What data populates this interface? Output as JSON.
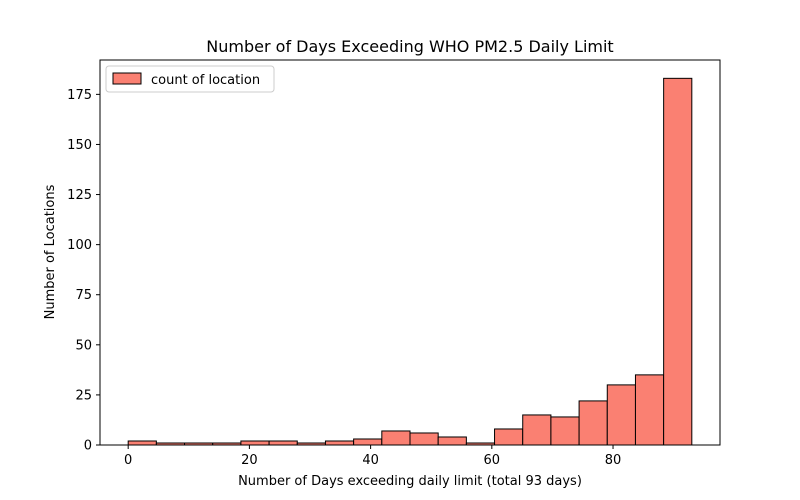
{
  "chart_data": {
    "type": "bar",
    "title": "Number of Days Exceeding WHO PM2.5 Daily Limit",
    "xlabel": "Number of Days exceeding daily limit (total 93 days)",
    "ylabel": "Number of Locations",
    "xlim": [
      -4.65,
      97.65
    ],
    "ylim": [
      0,
      192.15
    ],
    "x_ticks": [
      0,
      20,
      40,
      60,
      80
    ],
    "y_ticks": [
      0,
      25,
      50,
      75,
      100,
      125,
      150,
      175
    ],
    "bins": [
      {
        "start": 0.0,
        "end": 4.65,
        "value": 2
      },
      {
        "start": 4.65,
        "end": 9.3,
        "value": 1
      },
      {
        "start": 9.3,
        "end": 13.95,
        "value": 1
      },
      {
        "start": 13.95,
        "end": 18.6,
        "value": 1
      },
      {
        "start": 18.6,
        "end": 23.25,
        "value": 2
      },
      {
        "start": 23.25,
        "end": 27.9,
        "value": 2
      },
      {
        "start": 27.9,
        "end": 32.55,
        "value": 1
      },
      {
        "start": 32.55,
        "end": 37.2,
        "value": 2
      },
      {
        "start": 37.2,
        "end": 41.85,
        "value": 3
      },
      {
        "start": 41.85,
        "end": 46.5,
        "value": 7
      },
      {
        "start": 46.5,
        "end": 51.15,
        "value": 6
      },
      {
        "start": 51.15,
        "end": 55.8,
        "value": 4
      },
      {
        "start": 55.8,
        "end": 60.45,
        "value": 1
      },
      {
        "start": 60.45,
        "end": 65.1,
        "value": 8
      },
      {
        "start": 65.1,
        "end": 69.75,
        "value": 15
      },
      {
        "start": 69.75,
        "end": 74.4,
        "value": 14
      },
      {
        "start": 74.4,
        "end": 79.05,
        "value": 22
      },
      {
        "start": 79.05,
        "end": 83.7,
        "value": 30
      },
      {
        "start": 83.7,
        "end": 88.35,
        "value": 35
      },
      {
        "start": 88.35,
        "end": 93.0,
        "value": 183
      }
    ],
    "series": [
      {
        "name": "count of location",
        "color": "#fa8072",
        "edge_color": "#000000"
      }
    ],
    "legend": {
      "position": "top-left"
    },
    "grid": false
  }
}
